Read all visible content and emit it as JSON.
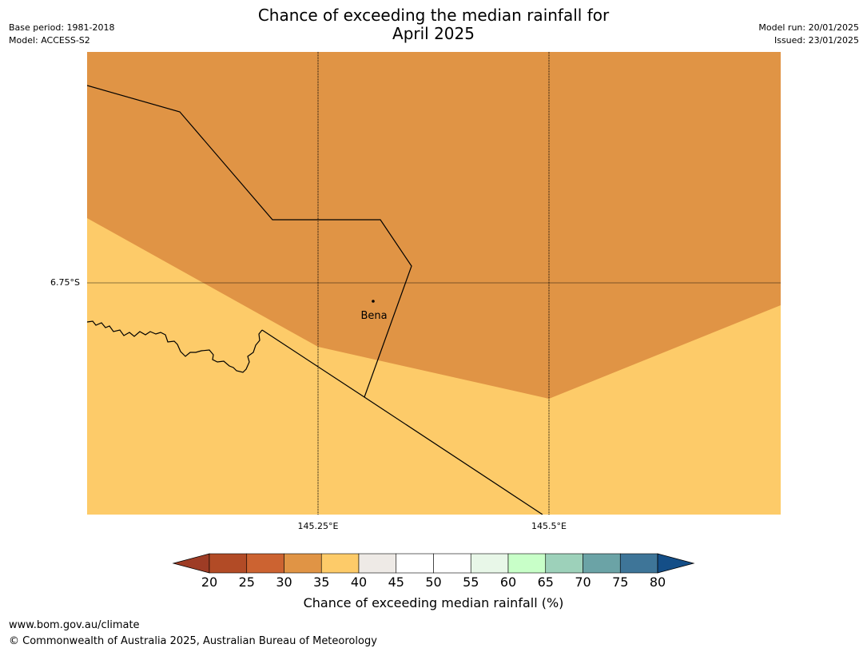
{
  "header": {
    "title_line1": "Chance of exceeding the median rainfall for",
    "title_line2": "April 2025",
    "base_period": "Base period: 1981-2018",
    "model": "Model: ACCESS-S2",
    "model_run": "Model run: 20/01/2025",
    "issued": "Issued: 23/01/2025"
  },
  "map": {
    "colors": {
      "high_chance_fill": "#E09445",
      "low_chance_fill": "#FDCB69",
      "boundary": "#000000",
      "grid": "#000000"
    },
    "lat_label": "6.75°S",
    "lon_labels": [
      "145.25°E",
      "145.5°E"
    ],
    "place": {
      "name": "Bena"
    }
  },
  "colorbar": {
    "label": "Chance of exceeding median rainfall (%)",
    "ticks": [
      "20",
      "25",
      "30",
      "35",
      "40",
      "45",
      "50",
      "55",
      "60",
      "65",
      "70",
      "75",
      "80"
    ],
    "colors": {
      "under": "#9E3C25",
      "bins": [
        "#B24B26",
        "#CC6331",
        "#E09445",
        "#FDCB69",
        "#EEEAE6",
        "#FFFFFF",
        "#FFFFFF",
        "#E8F7E8",
        "#C8FFC8",
        "#9DD1BA",
        "#6BA3A6",
        "#3E7598"
      ],
      "over": "#144E87"
    }
  },
  "footer": {
    "url": "www.bom.gov.au/climate",
    "copyright": "© Commonwealth of Australia 2025, Australian Bureau of Meteorology"
  }
}
